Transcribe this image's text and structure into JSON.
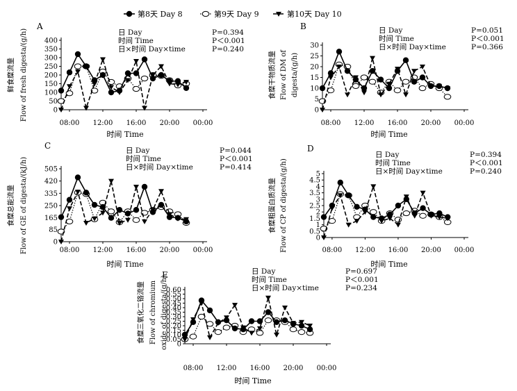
{
  "legend": [
    {
      "key": "day8",
      "label": "第8天  Day 8"
    },
    {
      "key": "day9",
      "label": "第9天  Day 9"
    },
    {
      "key": "day10",
      "label": "第10天  Day 10"
    }
  ],
  "chart_data": [
    {
      "type": "line",
      "panel": "A",
      "ylabel": [
        "鲜食糜流量",
        "Flow of fresh digesta/(g/h)"
      ],
      "xlabel": "时间  Time",
      "yticks": [
        0,
        50,
        100,
        150,
        200,
        250,
        300,
        350,
        400
      ],
      "ylim": [
        0,
        400
      ],
      "xticks": [
        "08:00",
        "12:00",
        "16:00",
        "20:00",
        "00:00"
      ],
      "stats": [
        {
          "label": "日  Day",
          "p": "P=0.394"
        },
        {
          "label": "时间  Time",
          "p": "P＜0.001"
        },
        {
          "label": "日×时间  Day×time",
          "p": "P=0.240"
        }
      ],
      "series": [
        {
          "key": "day8",
          "x": [
            7,
            8,
            9,
            10,
            11,
            12,
            13,
            14,
            15,
            16,
            17,
            18,
            19,
            20,
            21,
            22
          ],
          "y": [
            110,
            215,
            320,
            250,
            170,
            200,
            100,
            110,
            210,
            210,
            290,
            180,
            200,
            165,
            165,
            125
          ]
        },
        {
          "key": "day9",
          "x": [
            7,
            8,
            9,
            10,
            11,
            12,
            13,
            14,
            15,
            16,
            17,
            18,
            19,
            20,
            21,
            22
          ],
          "y": [
            50,
            95,
            250,
            250,
            110,
            220,
            160,
            135,
            180,
            120,
            180,
            200,
            195,
            170,
            140,
            150
          ]
        },
        {
          "key": "day10",
          "x": [
            7,
            8,
            9,
            10,
            11,
            12,
            13,
            14,
            15,
            16,
            17,
            18,
            19,
            20,
            21,
            22
          ],
          "y": [
            0,
            135,
            220,
            10,
            150,
            290,
            130,
            100,
            170,
            280,
            10,
            200,
            250,
            150,
            145,
            160
          ]
        }
      ]
    },
    {
      "type": "line",
      "panel": "B",
      "ylabel": [
        "食糜干物质流量",
        "Flow of DM of",
        "digesta/(g/h)"
      ],
      "xlabel": "时间  Time",
      "yticks": [
        0,
        5,
        10,
        15,
        20,
        25,
        30
      ],
      "ylim": [
        0,
        30
      ],
      "xticks": [
        "08:00",
        "12:00",
        "16:00",
        "20:00",
        "00:00"
      ],
      "stats": [
        {
          "label": "日  Day",
          "p": "P=0.051"
        },
        {
          "label": "时间  Time",
          "p": "P＜0.001"
        },
        {
          "label": "日×时间  Day×time",
          "p": "P=0.366"
        }
      ],
      "series": [
        {
          "key": "day8",
          "x": [
            7,
            8,
            9,
            10,
            11,
            12,
            13,
            14,
            15,
            16,
            17,
            18,
            19,
            20,
            21,
            22
          ],
          "y": [
            10,
            17,
            27,
            18,
            14,
            10,
            18,
            14,
            10,
            18,
            23,
            13,
            15,
            11,
            11,
            10
          ]
        },
        {
          "key": "day9",
          "x": [
            7,
            8,
            9,
            10,
            11,
            12,
            13,
            14,
            15,
            16,
            17,
            18,
            19,
            20,
            21,
            22
          ],
          "y": [
            4,
            9,
            21,
            20,
            11,
            15,
            13,
            8,
            13,
            9,
            13,
            15,
            10,
            12,
            10,
            6
          ]
        },
        {
          "key": "day10",
          "x": [
            7,
            8,
            9,
            10,
            11,
            12,
            13,
            14,
            15,
            16,
            17,
            18,
            19,
            20,
            21,
            22
          ],
          "y": [
            0,
            15,
            20,
            7,
            15,
            8,
            24,
            7,
            12,
            19,
            7,
            18,
            20,
            11,
            11,
            10
          ]
        }
      ]
    },
    {
      "type": "line",
      "panel": "C",
      "ylabel": [
        "食糜总能流量",
        "Flow of GE of digesta/(kJ/h)"
      ],
      "xlabel": "时间  Time",
      "yticks": [
        0,
        85,
        165,
        250,
        335,
        420,
        505
      ],
      "ylim": [
        0,
        505
      ],
      "xticks": [
        "08:00",
        "12:00",
        "16:00",
        "20:00",
        "00:00"
      ],
      "stats": [
        {
          "label": "日  Day",
          "p": "P=0.044"
        },
        {
          "label": "时间  Time",
          "p": "P＜0.001"
        },
        {
          "label": "日×时间  Day×time",
          "p": "P=0.414"
        }
      ],
      "series": [
        {
          "key": "day8",
          "x": [
            7,
            8,
            9,
            10,
            11,
            12,
            13,
            14,
            15,
            16,
            17,
            18,
            19,
            20,
            21,
            22
          ],
          "y": [
            170,
            290,
            445,
            340,
            255,
            240,
            165,
            220,
            195,
            220,
            380,
            205,
            255,
            170,
            165,
            140
          ]
        },
        {
          "key": "day9",
          "x": [
            7,
            8,
            9,
            10,
            11,
            12,
            13,
            14,
            15,
            16,
            17,
            18,
            19,
            20,
            21,
            22
          ],
          "y": [
            70,
            140,
            340,
            330,
            155,
            270,
            210,
            135,
            210,
            150,
            200,
            220,
            240,
            210,
            190,
            130
          ]
        },
        {
          "key": "day10",
          "x": [
            7,
            8,
            9,
            10,
            11,
            12,
            13,
            14,
            15,
            16,
            17,
            18,
            19,
            20,
            21,
            22
          ],
          "y": [
            0,
            230,
            345,
            130,
            160,
            200,
            420,
            130,
            150,
            380,
            140,
            220,
            350,
            190,
            160,
            155
          ]
        }
      ]
    },
    {
      "type": "line",
      "panel": "D",
      "ylabel": [
        "食糜粗蛋白质流量",
        "Flow of CP of digesta/(g/h)"
      ],
      "xlabel": "时间  Time",
      "yticks": [
        0,
        0.5,
        1.0,
        1.5,
        2.0,
        2.5,
        3.0,
        3.5,
        4.0,
        4.5,
        5.0
      ],
      "ylim": [
        0,
        5
      ],
      "xticks": [
        "08:00",
        "12:00",
        "16:00",
        "20:00",
        "00:00"
      ],
      "stats": [
        {
          "label": "日  Day",
          "p": "P=0.394"
        },
        {
          "label": "时间  Time",
          "p": "P＜0.001"
        },
        {
          "label": "日×时间  Day×time",
          "p": "P=0.240"
        }
      ],
      "series": [
        {
          "key": "day8",
          "x": [
            7,
            8,
            9,
            10,
            11,
            12,
            13,
            14,
            15,
            16,
            17,
            18,
            19,
            20,
            21,
            22
          ],
          "y": [
            1.6,
            2.5,
            4.3,
            3.3,
            2.4,
            2.2,
            1.6,
            1.5,
            1.8,
            2.5,
            3.0,
            1.9,
            2.3,
            1.8,
            1.9,
            1.6
          ]
        },
        {
          "key": "day9",
          "x": [
            7,
            8,
            9,
            10,
            11,
            12,
            13,
            14,
            15,
            16,
            17,
            18,
            19,
            20,
            21,
            22
          ],
          "y": [
            0.7,
            1.3,
            3.4,
            3.3,
            1.6,
            2.5,
            2.0,
            1.3,
            1.9,
            1.4,
            1.9,
            2.1,
            1.7,
            1.8,
            1.6,
            1.2
          ]
        },
        {
          "key": "day10",
          "x": [
            7,
            8,
            9,
            10,
            11,
            12,
            13,
            14,
            15,
            16,
            17,
            18,
            19,
            20,
            21,
            22
          ],
          "y": [
            0,
            2.3,
            3.3,
            1.0,
            1.3,
            2.0,
            4.0,
            1.3,
            1.5,
            1.0,
            3.2,
            1.7,
            3.5,
            1.7,
            1.6,
            1.5
          ]
        }
      ]
    },
    {
      "type": "line",
      "panel": "E",
      "ylabel": [
        "食糜三氧化二铬流量",
        "Flow of chromium",
        "oxide of digesta/(g/h)"
      ],
      "xlabel": "时间  Time",
      "yticks": [
        0,
        0.05,
        0.1,
        0.15,
        0.2,
        0.25,
        0.3,
        0.35,
        0.4,
        0.45,
        0.5,
        0.55,
        0.6
      ],
      "ylim": [
        0,
        0.6
      ],
      "ytick_labels": [
        "0",
        "0.05",
        "0.10",
        "0.15",
        "0.20",
        "0.25",
        "0.30",
        "0.35",
        "0.40",
        "0.45",
        "0.50",
        "0.55",
        "0.60"
      ],
      "xticks": [
        "08:00",
        "12:00",
        "16:00",
        "20:00",
        "00:00"
      ],
      "stats": [
        {
          "label": "日  Day",
          "p": "P=0.697"
        },
        {
          "label": "时间  Time",
          "p": "P＜0.001"
        },
        {
          "label": "日×时间  Day×time",
          "p": "P=0.234"
        }
      ],
      "series": [
        {
          "key": "day8",
          "x": [
            7,
            8,
            9,
            10,
            11,
            12,
            13,
            14,
            15,
            16,
            17,
            18,
            19,
            20,
            21,
            22
          ],
          "y": [
            0.1,
            0.24,
            0.48,
            0.37,
            0.24,
            0.26,
            0.17,
            0.16,
            0.25,
            0.25,
            0.35,
            0.24,
            0.26,
            0.22,
            0.2,
            0.16
          ]
        },
        {
          "key": "day9",
          "x": [
            7,
            8,
            9,
            10,
            11,
            12,
            13,
            14,
            15,
            16,
            17,
            18,
            19,
            20,
            21,
            22
          ],
          "y": [
            0.05,
            0.08,
            0.3,
            0.22,
            0.13,
            0.18,
            0.2,
            0.13,
            0.16,
            0.12,
            0.26,
            0.26,
            0.24,
            0.16,
            0.13,
            0.12
          ]
        },
        {
          "key": "day10",
          "x": [
            7,
            8,
            9,
            10,
            11,
            12,
            13,
            14,
            15,
            16,
            17,
            18,
            19,
            20,
            21,
            22
          ],
          "y": [
            0.05,
            0.27,
            0.45,
            0.07,
            0.23,
            0.29,
            0.43,
            0.18,
            0.12,
            0.17,
            0.51,
            0.1,
            0.4,
            0.23,
            0.24,
            0.2
          ]
        }
      ]
    }
  ]
}
